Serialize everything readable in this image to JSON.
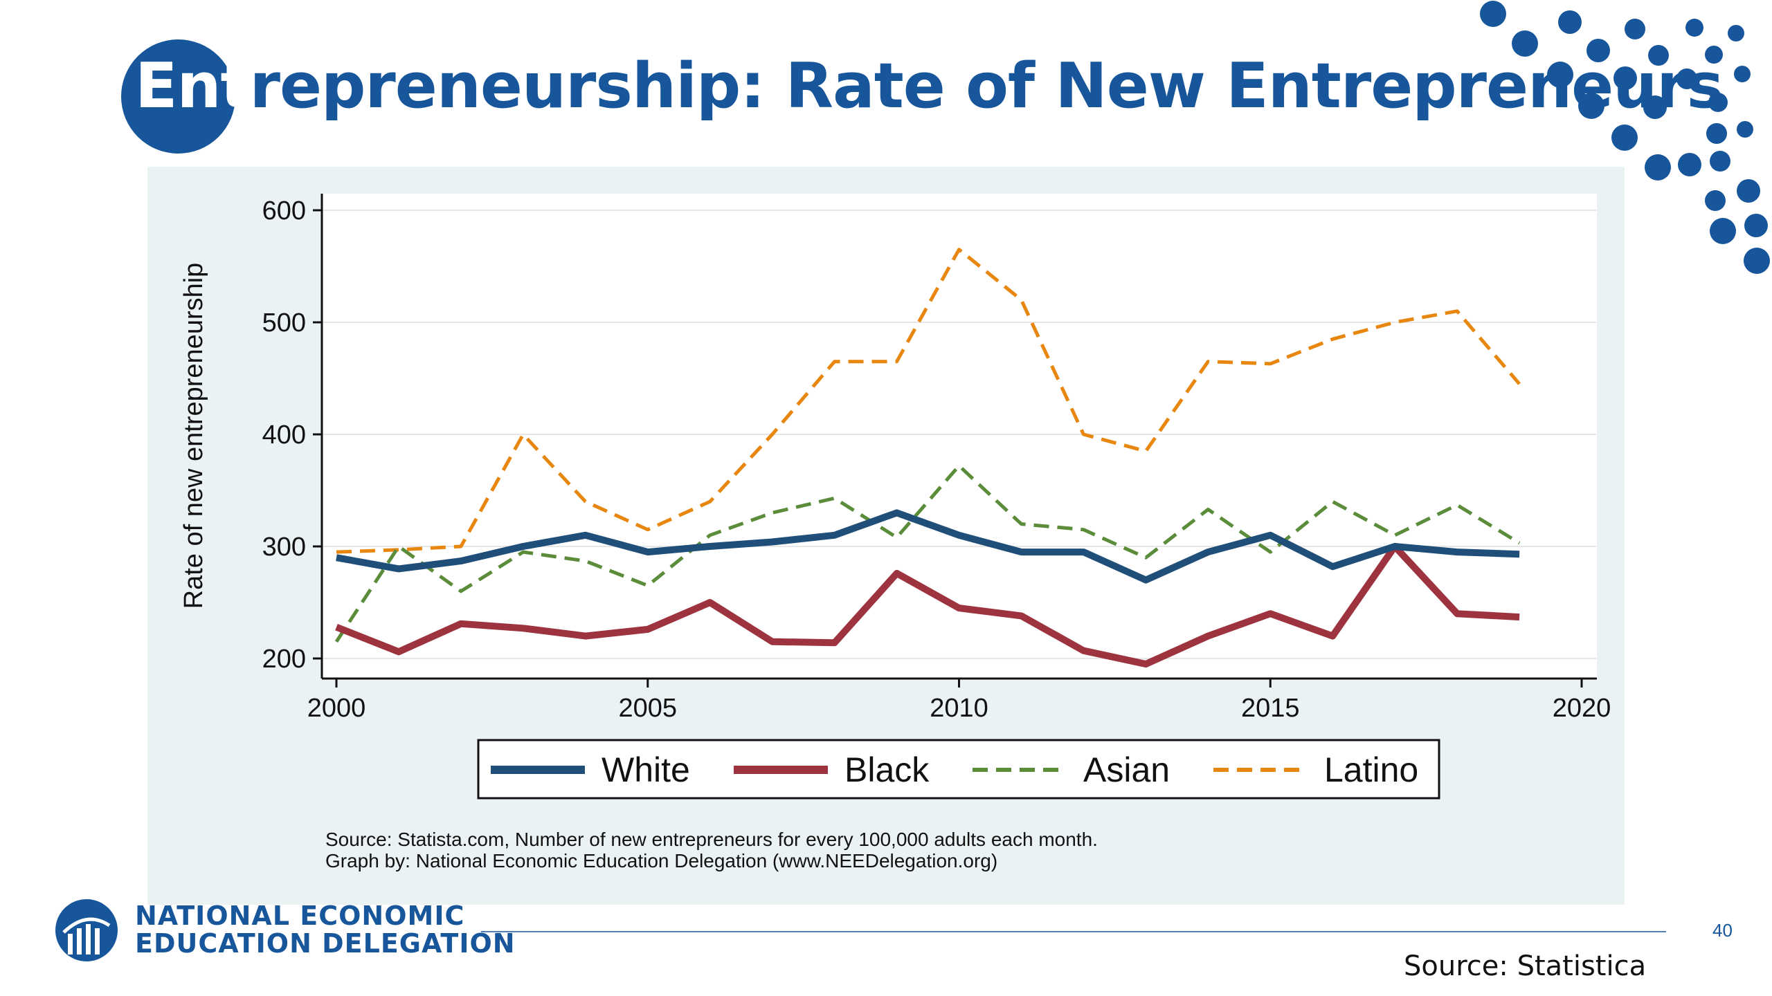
{
  "slide": {
    "title_lead": "Ent",
    "title_rest": "repreneurship: Rate of New Entrepreneurs",
    "note_line1": "Source: Statista.com, Number of new entrepreneurs for every 100,000 adults each month.",
    "note_line2": "Graph by: National Economic Education Delegation (www.NEEDelegation.org)",
    "logo_line1": "NATIONAL ECONOMIC",
    "logo_line2": "EDUCATION DELEGATION",
    "page_number": "40",
    "source_bottom": "Source: Statistica",
    "colors": {
      "brand": "#17569b",
      "panel": "#eaf2f3"
    }
  },
  "chart_data": {
    "type": "line",
    "title": "",
    "xlabel": "",
    "ylabel": "Rate of new entrepreneurship",
    "xlim": [
      2000,
      2020
    ],
    "ylim": [
      200,
      600
    ],
    "xticks": [
      2000,
      2005,
      2010,
      2015,
      2020
    ],
    "yticks": [
      200,
      300,
      400,
      500,
      600
    ],
    "grid": true,
    "legend": "bottom",
    "x": [
      2000,
      2001,
      2002,
      2003,
      2004,
      2005,
      2006,
      2007,
      2008,
      2009,
      2010,
      2011,
      2012,
      2013,
      2014,
      2015,
      2016,
      2017,
      2018,
      2019
    ],
    "series": [
      {
        "name": "White",
        "style": "solid",
        "width": 10,
        "color": "#1f4e79",
        "values": [
          290,
          280,
          287,
          300,
          310,
          295,
          300,
          304,
          310,
          330,
          310,
          295,
          295,
          270,
          295,
          310,
          282,
          300,
          295,
          293
        ]
      },
      {
        "name": "Black",
        "style": "solid",
        "width": 10,
        "color": "#9e3340",
        "values": [
          228,
          206,
          231,
          227,
          220,
          226,
          250,
          215,
          214,
          276,
          245,
          238,
          207,
          195,
          220,
          240,
          220,
          300,
          240,
          237
        ]
      },
      {
        "name": "Asian",
        "style": "dashed",
        "width": 5,
        "color": "#5a8c3a",
        "values": [
          215,
          300,
          260,
          295,
          287,
          265,
          310,
          330,
          343,
          308,
          372,
          320,
          315,
          290,
          333,
          295,
          340,
          310,
          337,
          303
        ]
      },
      {
        "name": "Latino",
        "style": "dashed",
        "width": 5,
        "color": "#e8870f",
        "values": [
          295,
          297,
          300,
          400,
          340,
          315,
          340,
          400,
          465,
          465,
          565,
          520,
          400,
          385,
          465,
          463,
          485,
          500,
          510,
          445
        ]
      }
    ]
  }
}
